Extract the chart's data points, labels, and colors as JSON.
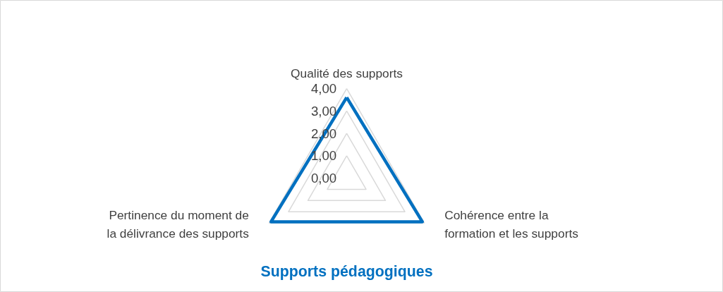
{
  "chart_data": {
    "type": "radar",
    "title": "Supports pédagogiques",
    "categories": [
      "Qualité des supports",
      "Cohérence entre la formation et les supports",
      "Pertinence du moment de la délivrance des supports"
    ],
    "series": [
      {
        "color": "#0070c0",
        "values": [
          3.6,
          3.9,
          3.9
        ]
      }
    ],
    "ylim": [
      0,
      4
    ],
    "yticks": [
      {
        "value": 0,
        "label": "0,00"
      },
      {
        "value": 1,
        "label": "1,00"
      },
      {
        "value": 2,
        "label": "2,00"
      },
      {
        "value": 3,
        "label": "3,00"
      },
      {
        "value": 4,
        "label": "4,00"
      }
    ],
    "grid": true,
    "line_style": "solid"
  }
}
